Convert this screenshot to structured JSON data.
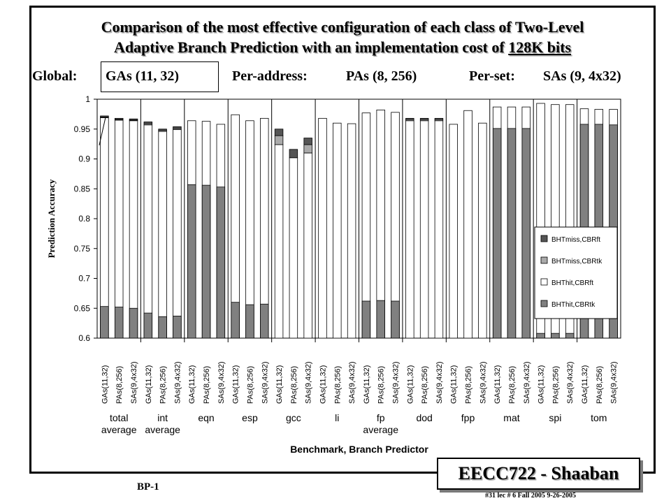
{
  "slide": {
    "title_line1": "Comparison of the most effective configuration of each class of Two-Level",
    "title_line2_prefix": "Adaptive Branch Prediction with an implementation cost of ",
    "title_line2_cost": "128K bits",
    "global_label": "Global:",
    "global_value": "GAs (11, 32)",
    "peraddress_label": "Per-address:",
    "peraddress_value": "PAs (8, 256)",
    "perset_label": "Per-set:",
    "perset_value": "SAs (9, 4x32)",
    "badge": "EECC722 - Shaaban",
    "bp_label": "BP-1",
    "footer": "#31   lec # 6   Fall 2005   9-26-2005"
  },
  "chart_data": {
    "type": "bar",
    "stacked": true,
    "ylabel": "Prediction Accuracy",
    "xlabel": "Benchmark, Branch Predictor",
    "ylim": [
      0.6,
      1.0
    ],
    "yticks": [
      "0.6",
      "0.65",
      "0.7",
      "0.75",
      "0.8",
      "0.85",
      "0.9",
      "0.95",
      "1"
    ],
    "grid": false,
    "legend_position": "right",
    "predictors": [
      "GAs(11,32)",
      "PAs(8,256)",
      "SAs(9,4x32)"
    ],
    "groups": [
      {
        "line1": "total",
        "line2": "average"
      },
      {
        "line1": "int",
        "line2": "average"
      },
      {
        "line1": "eqn",
        "line2": ""
      },
      {
        "line1": "esp",
        "line2": ""
      },
      {
        "line1": "gcc",
        "line2": ""
      },
      {
        "line1": "li",
        "line2": ""
      },
      {
        "line1": "fp",
        "line2": "average"
      },
      {
        "line1": "dod",
        "line2": ""
      },
      {
        "line1": "fpp",
        "line2": ""
      },
      {
        "line1": "mat",
        "line2": ""
      },
      {
        "line1": "spi",
        "line2": ""
      },
      {
        "line1": "tom",
        "line2": ""
      }
    ],
    "series": [
      {
        "name": "BHTmiss,CBRft",
        "color": "#555555"
      },
      {
        "name": "BHTmiss,CBRtk",
        "color": "#aaaaaa"
      },
      {
        "name": "BHThit,CBRft",
        "color": "#ffffff"
      },
      {
        "name": "BHThit,CBRtk",
        "color": "#808080"
      }
    ],
    "bars": [
      [
        [
          0.653,
          0.969,
          0.001,
          0.002
        ],
        [
          0.652,
          0.965,
          0.001,
          0.002
        ],
        [
          0.65,
          0.964,
          0.001,
          0.002
        ]
      ],
      [
        [
          0.642,
          0.957,
          0.002,
          0.003
        ],
        [
          0.636,
          0.946,
          0.002,
          0.002
        ],
        [
          0.637,
          0.949,
          0.002,
          0.003
        ]
      ],
      [
        [
          0.857,
          0.964,
          0.0,
          0.0
        ],
        [
          0.856,
          0.963,
          0.0,
          0.0
        ],
        [
          0.853,
          0.958,
          0.0,
          0.0
        ]
      ],
      [
        [
          0.66,
          0.974,
          0.0,
          0.0
        ],
        [
          0.656,
          0.964,
          0.0,
          0.0
        ],
        [
          0.657,
          0.968,
          0.0,
          0.0
        ]
      ],
      [
        [
          0.6,
          0.924,
          0.015,
          0.011
        ],
        [
          0.6,
          0.902,
          0.0,
          0.014
        ],
        [
          0.6,
          0.91,
          0.014,
          0.011
        ]
      ],
      [
        [
          0.6,
          0.968,
          0.0,
          0.0
        ],
        [
          0.6,
          0.96,
          0.0,
          0.0
        ],
        [
          0.6,
          0.959,
          0.0,
          0.0
        ]
      ],
      [
        [
          0.662,
          0.977,
          0.0,
          0.0
        ],
        [
          0.663,
          0.982,
          0.0,
          0.0
        ],
        [
          0.662,
          0.978,
          0.0,
          0.0
        ]
      ],
      [
        [
          0.6,
          0.964,
          0.002,
          0.002
        ],
        [
          0.6,
          0.964,
          0.002,
          0.002
        ],
        [
          0.6,
          0.964,
          0.002,
          0.002
        ]
      ],
      [
        [
          0.6,
          0.958,
          0.0,
          0.0
        ],
        [
          0.6,
          0.981,
          0.0,
          0.0
        ],
        [
          0.6,
          0.96,
          0.0,
          0.0
        ]
      ],
      [
        [
          0.951,
          0.987,
          0.0,
          0.0
        ],
        [
          0.951,
          0.987,
          0.0,
          0.0
        ],
        [
          0.951,
          0.987,
          0.0,
          0.0
        ]
      ],
      [
        [
          0.608,
          0.993,
          0.0,
          0.0
        ],
        [
          0.608,
          0.991,
          0.0,
          0.0
        ],
        [
          0.608,
          0.991,
          0.0,
          0.0
        ]
      ],
      [
        [
          0.958,
          0.984,
          0.0,
          0.0
        ],
        [
          0.958,
          0.983,
          0.0,
          0.0
        ],
        [
          0.957,
          0.983,
          0.0,
          0.0
        ]
      ]
    ]
  }
}
